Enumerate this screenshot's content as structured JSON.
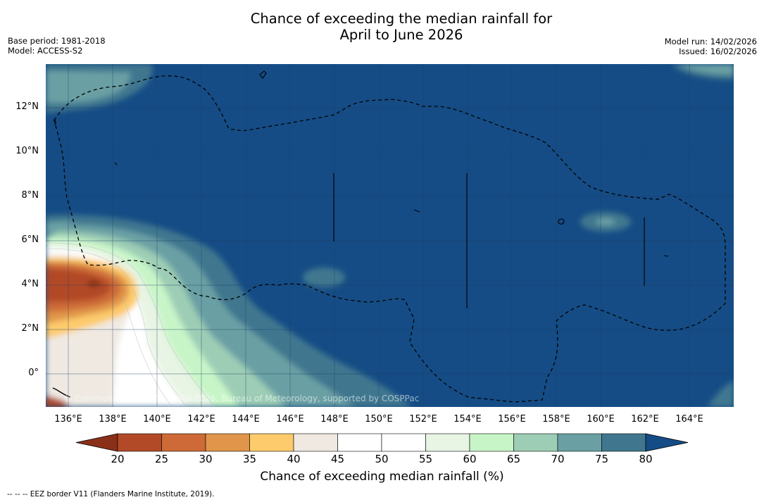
{
  "title": {
    "line1": "Chance of exceeding the median rainfall for",
    "line2": "April to June 2026"
  },
  "meta": {
    "base_period": "Base period: 1981-2018",
    "model": "Model: ACCESS-S2",
    "model_run": "Model run: 14/02/2026",
    "issued": "Issued: 16/02/2026"
  },
  "map": {
    "copyright": "© Commonwealth of Australia 2026, Bureau of Meteorology, supported by COSPPac",
    "x_ticks": [
      "136°E",
      "138°E",
      "140°E",
      "142°E",
      "144°E",
      "146°E",
      "148°E",
      "150°E",
      "152°E",
      "154°E",
      "156°E",
      "158°E",
      "160°E",
      "162°E",
      "164°E"
    ],
    "y_ticks": [
      "12°N",
      "10°N",
      "8°N",
      "6°N",
      "4°N",
      "2°N",
      "0°"
    ]
  },
  "colorbar": {
    "labels": [
      "20",
      "25",
      "30",
      "35",
      "40",
      "45",
      "50",
      "55",
      "60",
      "65",
      "70",
      "75",
      "80"
    ],
    "colors": [
      "#8b3018",
      "#b24a27",
      "#cd6a37",
      "#e0954a",
      "#fdcb6c",
      "#efe9e2",
      "#ffffff",
      "#ffffff",
      "#e8f4e4",
      "#c8f5c8",
      "#9dcdb5",
      "#6aa0a4",
      "#40778f",
      "#154c85"
    ],
    "title": "Chance of exceeding median rainfall (%)"
  },
  "footnote": "--  --  -- EEZ border V11 (Flanders Marine Institute, 2019)."
}
